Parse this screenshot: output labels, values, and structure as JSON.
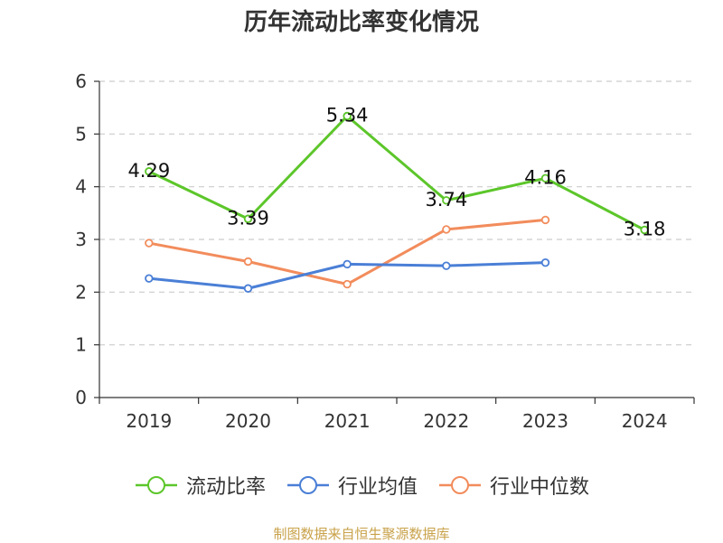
{
  "chart_data": {
    "type": "line",
    "title": "历年流动比率变化情况",
    "categories": [
      "2019",
      "2020",
      "2021",
      "2022",
      "2023",
      "2024"
    ],
    "y_ticks": [
      "0",
      "1",
      "2",
      "3",
      "4",
      "5",
      "6"
    ],
    "ylim": [
      0,
      6
    ],
    "grid": "horizontal dashed",
    "legend_position": "bottom",
    "series": [
      {
        "name": "流动比率",
        "color": "#5cc62a",
        "values": [
          4.29,
          3.39,
          5.34,
          3.74,
          4.16,
          3.18
        ],
        "labels": [
          "4.29",
          "3.39",
          "5.34",
          "3.74",
          "4.16",
          "3.18"
        ]
      },
      {
        "name": "行业均值",
        "color": "#4a7fd6",
        "values": [
          2.26,
          2.07,
          2.53,
          2.5,
          2.56,
          null
        ]
      },
      {
        "name": "行业中位数",
        "color": "#f28c5c",
        "values": [
          2.93,
          2.58,
          2.15,
          3.19,
          3.37,
          null
        ]
      }
    ]
  },
  "footer": {
    "source": "制图数据来自恒生聚源数据库"
  }
}
